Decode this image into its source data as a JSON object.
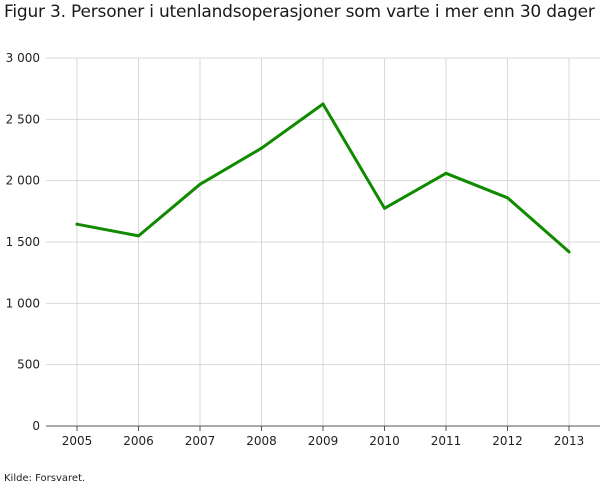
{
  "title": "Figur 3. Personer i utenlandsoperasjoner som varte i mer enn 30 dager",
  "source": "Kilde: Forsvaret.",
  "chart_data": {
    "type": "line",
    "title": "Figur 3. Personer i utenlandsoperasjoner som varte i mer enn 30 dager",
    "xlabel": "",
    "ylabel": "",
    "categories": [
      "2005",
      "2006",
      "2007",
      "2008",
      "2009",
      "2010",
      "2011",
      "2012",
      "2013"
    ],
    "series": [
      {
        "values": [
          1645,
          1550,
          1970,
          2265,
          2625,
          1775,
          2060,
          1860,
          1420
        ],
        "color": "#108b00"
      }
    ],
    "ylim": [
      0,
      3000
    ],
    "yticks": [
      0,
      500,
      1000,
      1500,
      2000,
      2500,
      3000
    ],
    "ytick_labels": [
      "0",
      "500",
      "1 000",
      "1 500",
      "2 000",
      "2 500",
      "3 000"
    ],
    "grid": true,
    "grid_color": "#d9d9d9",
    "legend": "none"
  }
}
